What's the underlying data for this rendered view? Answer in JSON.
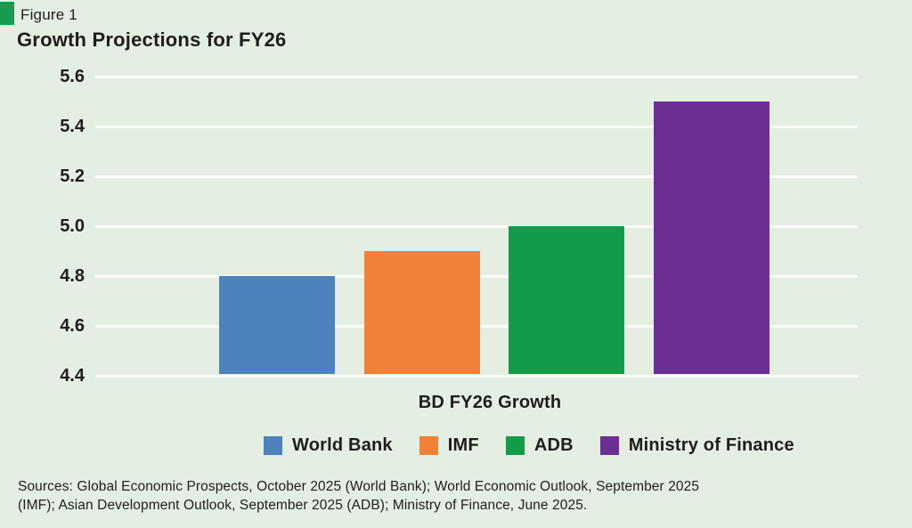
{
  "figure": {
    "label": "Figure 1",
    "title": "Growth Projections for FY26"
  },
  "chart_data": {
    "type": "bar",
    "categories": [
      "World Bank",
      "IMF",
      "ADB",
      "Ministry of Finance"
    ],
    "values": [
      4.8,
      4.9,
      5.0,
      5.5
    ],
    "colors": [
      "#4d82bf",
      "#f08138",
      "#129c49",
      "#6b2e92"
    ],
    "title": "Growth Projections for FY26",
    "xlabel": "BD FY26 Growth",
    "ylabel": "",
    "ylim": [
      4.4,
      5.6
    ],
    "ytick_step": 0.2,
    "ytick_labels": [
      "4.4",
      "4.6",
      "4.8",
      "5.0",
      "5.2",
      "5.4",
      "5.6"
    ],
    "grid": true,
    "gridline_color": "#fbfdf8",
    "legend_position": "bottom"
  },
  "footer": {
    "sources_line1": "Sources: Global Economic Prospects, October 2025 (World Bank); World Economic Outlook, September 2025",
    "sources_line2": "(IMF); Asian Development Outlook, September 2025 (ADB); Ministry of Finance, June 2025."
  },
  "colors": {
    "background": "#e4eee2",
    "accent": "#179b4d",
    "text": "#1f1e1c"
  }
}
